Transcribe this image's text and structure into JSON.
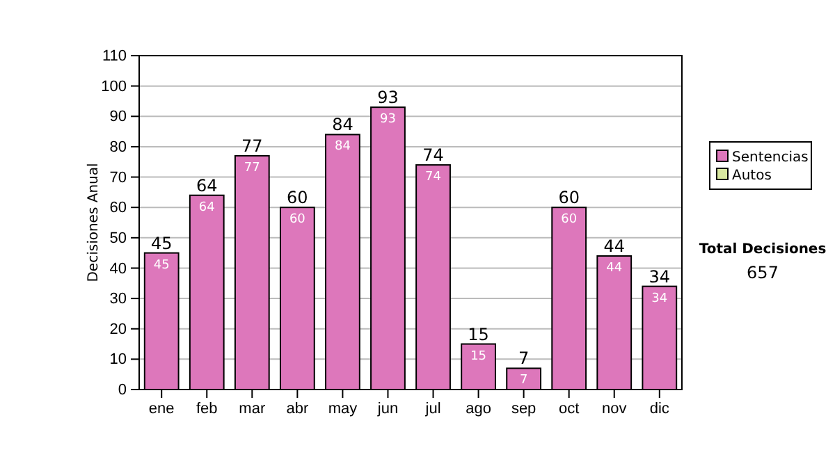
{
  "chart_data": {
    "type": "bar",
    "ylabel": "Decisiones Anual",
    "categories": [
      "ene",
      "feb",
      "mar",
      "abr",
      "may",
      "jun",
      "jul",
      "ago",
      "sep",
      "oct",
      "nov",
      "dic"
    ],
    "series": [
      {
        "name": "Sentencias",
        "color": "#dd77bb",
        "values": [
          45,
          64,
          77,
          60,
          84,
          93,
          74,
          15,
          7,
          60,
          44,
          34
        ],
        "value_labels": [
          "45",
          "64",
          "77",
          "60",
          "84",
          "93",
          "74",
          "15",
          "7",
          "60",
          "44",
          "34"
        ]
      },
      {
        "name": "Autos",
        "color": "#d8e8a0",
        "values": [
          0,
          0,
          0,
          0,
          0,
          0,
          0,
          0,
          0,
          0,
          0,
          0
        ],
        "value_labels": [
          null,
          null,
          null,
          null,
          null,
          null,
          null,
          null,
          null,
          null,
          null,
          null
        ]
      }
    ],
    "stacked": true,
    "totals": [
      "45",
      "64",
      "77",
      "60",
      "84",
      "93",
      "74",
      "15",
      "7",
      "60",
      "44",
      "34"
    ],
    "ylim": [
      0,
      110
    ],
    "yticks": [
      0,
      10,
      20,
      30,
      40,
      50,
      60,
      70,
      80,
      90,
      100,
      110
    ],
    "grid": "y",
    "legend": "right",
    "annotations": [
      "Total Decisiones",
      "657"
    ]
  }
}
